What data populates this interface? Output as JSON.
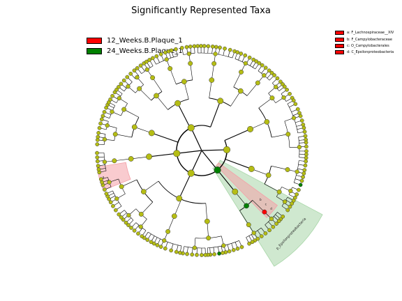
{
  "title": "Significantly Represented Taxa",
  "legend": [
    {
      "label": "12_Weeks.B.Plaque_1",
      "color": "#ff0000"
    },
    {
      "label": "24_Weeks.B.Plaque_1",
      "color": "#008000"
    }
  ],
  "clade_legend": [
    {
      "label": "a: F_Lachnospiraceae__XIV",
      "color": "#ff0000"
    },
    {
      "label": "b: F_Campylobacteraceae",
      "color": "#ff0000"
    },
    {
      "label": "c: O_Campylobacterales",
      "color": "#ff0000"
    },
    {
      "label": "d: C_Epsilonproteobacteria",
      "color": "#ff0000"
    }
  ],
  "colors": {
    "node_default": "#b5bd14",
    "node_red": "#ff0000",
    "node_green": "#008000",
    "shade_red": "#f4a0a8",
    "shade_green": "#a7d6a7"
  },
  "sector_labels": {
    "red_small": "a",
    "red_wedge": [
      "b",
      "c",
      "d"
    ],
    "green": "p_Epsilonproteobacteria"
  }
}
